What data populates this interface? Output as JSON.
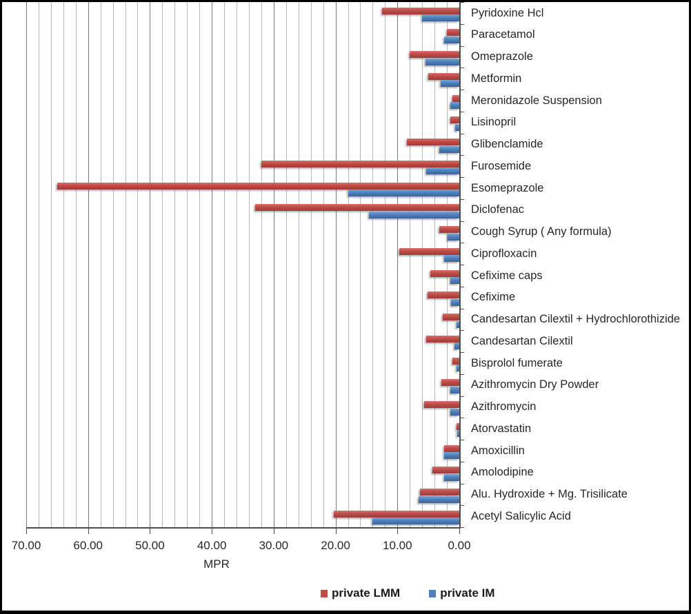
{
  "chart_data": {
    "type": "bar",
    "orientation": "horizontal",
    "axis_reversed": true,
    "title": "",
    "xlabel": "MPR",
    "ylabel": "",
    "xlim": [
      0,
      70
    ],
    "major_unit": 10,
    "minor_unit": 2,
    "grid": true,
    "legend_position": "bottom-right",
    "x_tick_labels": [
      "70.00",
      "60.00",
      "50.00",
      "40.00",
      "30.00",
      "20.00",
      "10.00",
      "0.00"
    ],
    "categories": [
      "Pyridoxine Hcl",
      "Paracetamol",
      "Omeprazole",
      "Metformin",
      "Meronidazole Suspension",
      "Lisinopril",
      "Glibenclamide",
      "Furosemide",
      "Esomeprazole",
      "Diclofenac",
      "Cough Syrup ( Any formula)",
      "Ciprofloxacin",
      "Cefixime caps",
      "Cefixime",
      "Candesartan Cilextil + Hydrochlorothizide",
      "Candesartan Cilextil",
      "Bisprolol fumerate",
      "Azithromycin Dry Powder",
      "Azithromycin",
      "Atorvastatin",
      "Amoxicillin",
      "Amolodipine",
      "Alu. Hydroxide + Mg. Trisilicate",
      "Acetyl Salicylic Acid"
    ],
    "series": [
      {
        "name": "private LMM",
        "color": "#bf4b48",
        "values": [
          12.5,
          2.0,
          8.0,
          5.0,
          1.1,
          1.4,
          8.5,
          32.0,
          65.0,
          33.0,
          3.2,
          9.7,
          4.7,
          5.1,
          2.7,
          5.3,
          1.1,
          2.9,
          5.7,
          0.5,
          2.5,
          4.3,
          6.3,
          20.3
        ]
      },
      {
        "name": "private IM",
        "color": "#4f81bd",
        "values": [
          6.0,
          2.5,
          5.5,
          3.0,
          1.5,
          0.7,
          3.2,
          5.3,
          18.0,
          14.6,
          1.9,
          2.4,
          1.5,
          1.3,
          0.5,
          0.8,
          0.4,
          1.4,
          1.5,
          0.3,
          2.4,
          2.5,
          6.6,
          14.0
        ]
      }
    ]
  }
}
